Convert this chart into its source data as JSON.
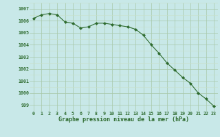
{
  "x": [
    0,
    1,
    2,
    3,
    4,
    5,
    6,
    7,
    8,
    9,
    10,
    11,
    12,
    13,
    14,
    15,
    16,
    17,
    18,
    19,
    20,
    21,
    22,
    23
  ],
  "y": [
    1006.2,
    1006.5,
    1006.6,
    1006.5,
    1005.9,
    1005.8,
    1005.4,
    1005.5,
    1005.8,
    1005.8,
    1005.7,
    1005.6,
    1005.5,
    1005.3,
    1004.8,
    1004.0,
    1003.3,
    1002.5,
    1001.9,
    1001.3,
    1000.8,
    1000.0,
    999.5,
    998.9
  ],
  "line_color": "#2d6a2d",
  "marker_color": "#2d6a2d",
  "bg_color": "#c8e8e8",
  "grid_color_major": "#a8c8a8",
  "grid_color_minor": "#c8e0c8",
  "xlabel": "Graphe pression niveau de la mer (hPa)",
  "xlabel_color": "#2d6a2d",
  "tick_color": "#2d6a2d",
  "ylim": [
    998.5,
    1007.5
  ],
  "xlim": [
    -0.5,
    23.5
  ],
  "yticks": [
    999,
    1000,
    1001,
    1002,
    1003,
    1004,
    1005,
    1006,
    1007
  ],
  "xticks": [
    0,
    1,
    2,
    3,
    4,
    5,
    6,
    7,
    8,
    9,
    10,
    11,
    12,
    13,
    14,
    15,
    16,
    17,
    18,
    19,
    20,
    21,
    22,
    23
  ]
}
